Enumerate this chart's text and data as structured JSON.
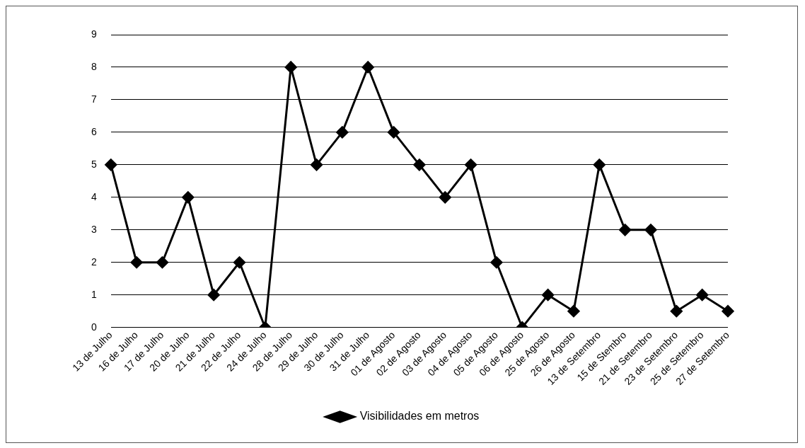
{
  "chart_data": {
    "type": "line",
    "categories": [
      "13 de Julho",
      "16 de Julho",
      "17 de Julho",
      "20 de Julho",
      "21 de Julho",
      "22 de Julho",
      "24 de Julho",
      "28 de Julho",
      "29 de Julho",
      "30 de Julho",
      "31 de Julho",
      "01 de Agosto",
      "02 de Agosto",
      "03 de Agosto",
      "04 de Agosto",
      "05 de Agosto",
      "06 de Agosto",
      "25 de Agosto",
      "26 de Agosto",
      "13 de Setembro",
      "15 de Stembro",
      "21 de Setembro",
      "23 de Setembro",
      "25 de Setembro",
      "27 de Setembro"
    ],
    "series": [
      {
        "name": "Visibilidades em metros",
        "color": "#000000",
        "values": [
          5,
          2,
          2,
          4,
          1,
          2,
          0,
          8,
          5,
          6,
          8,
          6,
          5,
          4,
          5,
          2,
          0,
          1,
          0.5,
          5,
          3,
          3,
          0.5,
          1,
          0.5
        ]
      }
    ],
    "ylim": [
      0,
      9
    ],
    "yticks": [
      0,
      1,
      2,
      3,
      4,
      5,
      6,
      7,
      8,
      9
    ],
    "grid": "y",
    "legend": "bottom",
    "marker": "diamond",
    "line_style": "solid"
  }
}
